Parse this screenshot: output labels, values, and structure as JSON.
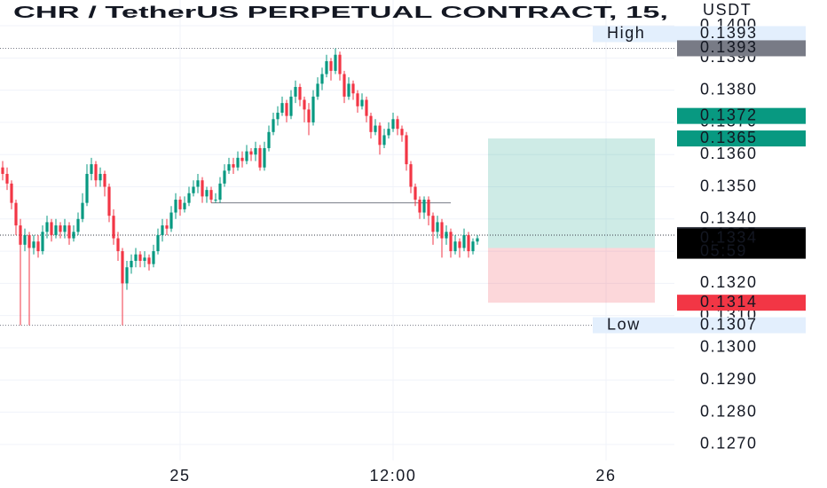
{
  "chart_data": {
    "type": "candlestick",
    "title": "CHR / TetherUS PERPETUAL CONTRACT, 15,",
    "currency": "USDT",
    "open": [
      0.1356,
      0.1354,
      0.1351,
      0.1345,
      0.1338,
      0.1332,
      0.1335,
      0.1331,
      0.1333,
      0.133,
      0.1336,
      0.1339,
      0.1335,
      0.1338,
      0.1336,
      0.1338,
      0.1334,
      0.1336,
      0.134,
      0.1345,
      0.1354,
      0.1357,
      0.1352,
      0.1354,
      0.135,
      0.1341,
      0.1334,
      0.133,
      0.132,
      0.1325,
      0.1327,
      0.1329,
      0.1327,
      0.1328,
      0.1326,
      0.133,
      0.1335,
      0.1338,
      0.1337,
      0.1342,
      0.1346,
      0.1343,
      0.1345,
      0.1348,
      0.135,
      0.1352,
      0.1347,
      0.1349,
      0.1346,
      0.1346,
      0.1351,
      0.1355,
      0.1357,
      0.1356,
      0.1359,
      0.1358,
      0.1361,
      0.136,
      0.1362,
      0.1356,
      0.1362,
      0.1367,
      0.1371,
      0.1373,
      0.1376,
      0.1372,
      0.1378,
      0.1381,
      0.1377,
      0.1374,
      0.137,
      0.1378,
      0.1382,
      0.1385,
      0.1389,
      0.1386,
      0.1391,
      0.1385,
      0.1378,
      0.1382,
      0.1379,
      0.1375,
      0.1377,
      0.1372,
      0.1367,
      0.1369,
      0.1363,
      0.1366,
      0.1368,
      0.1371,
      0.1368,
      0.1366,
      0.1357,
      0.135,
      0.1346,
      0.1342,
      0.1346,
      0.1341,
      0.1336,
      0.1339,
      0.1334,
      0.1336,
      0.133,
      0.1333,
      0.1331,
      0.1335,
      0.133,
      0.1333
    ],
    "high": [
      0.1358,
      0.1356,
      0.1352,
      0.1346,
      0.134,
      0.1337,
      0.1336,
      0.1335,
      0.1335,
      0.1338,
      0.1341,
      0.134,
      0.134,
      0.1339,
      0.134,
      0.1339,
      0.1338,
      0.1342,
      0.1348,
      0.1357,
      0.1359,
      0.1358,
      0.1356,
      0.1355,
      0.1351,
      0.1343,
      0.1336,
      0.1331,
      0.1327,
      0.1329,
      0.1331,
      0.133,
      0.133,
      0.1329,
      0.1332,
      0.1337,
      0.134,
      0.134,
      0.1344,
      0.1348,
      0.1347,
      0.1347,
      0.135,
      0.1352,
      0.1354,
      0.1353,
      0.135,
      0.135,
      0.1348,
      0.1353,
      0.1357,
      0.1359,
      0.1359,
      0.1361,
      0.1361,
      0.1363,
      0.1362,
      0.1364,
      0.1363,
      0.1364,
      0.1369,
      0.1373,
      0.1375,
      0.1378,
      0.1377,
      0.138,
      0.1383,
      0.1382,
      0.1378,
      0.1376,
      0.138,
      0.1384,
      0.1387,
      0.1391,
      0.139,
      0.1393,
      0.1392,
      0.1386,
      0.1384,
      0.1383,
      0.138,
      0.1379,
      0.1378,
      0.1373,
      0.1371,
      0.137,
      0.1368,
      0.137,
      0.1373,
      0.1372,
      0.1369,
      0.1367,
      0.1358,
      0.1351,
      0.1347,
      0.1347,
      0.1347,
      0.1342,
      0.1341,
      0.134,
      0.1338,
      0.1337,
      0.1335,
      0.1334,
      0.1337,
      0.1336,
      0.1334,
      0.1335
    ],
    "low": [
      0.1352,
      0.1349,
      0.1343,
      0.1335,
      0.1307,
      0.133,
      0.1307,
      0.1329,
      0.1328,
      0.1329,
      0.1334,
      0.1333,
      0.1334,
      0.1334,
      0.1334,
      0.1332,
      0.1333,
      0.1335,
      0.1339,
      0.1344,
      0.1352,
      0.135,
      0.135,
      0.1347,
      0.1339,
      0.1332,
      0.1327,
      0.1307,
      0.1318,
      0.1323,
      0.1325,
      0.1325,
      0.1325,
      0.1324,
      0.1325,
      0.1329,
      0.1333,
      0.1335,
      0.1336,
      0.134,
      0.1341,
      0.1342,
      0.1344,
      0.1347,
      0.1348,
      0.1345,
      0.1345,
      0.1345,
      0.1345,
      0.1345,
      0.135,
      0.1354,
      0.1354,
      0.1355,
      0.1356,
      0.1357,
      0.1358,
      0.1358,
      0.1355,
      0.1355,
      0.1361,
      0.1366,
      0.1369,
      0.1372,
      0.137,
      0.1371,
      0.1376,
      0.1375,
      0.137,
      0.1366,
      0.1369,
      0.1377,
      0.138,
      0.1384,
      0.1383,
      0.1385,
      0.1383,
      0.1376,
      0.1377,
      0.1377,
      0.1373,
      0.1374,
      0.137,
      0.1365,
      0.1366,
      0.136,
      0.1362,
      0.1365,
      0.1367,
      0.1366,
      0.1364,
      0.1355,
      0.1348,
      0.1344,
      0.134,
      0.134,
      0.1338,
      0.1332,
      0.1334,
      0.1328,
      0.1332,
      0.1328,
      0.1329,
      0.1328,
      0.133,
      0.1328,
      0.1329,
      0.1332
    ],
    "close": [
      0.1354,
      0.1351,
      0.1345,
      0.1338,
      0.1332,
      0.1335,
      0.1331,
      0.1333,
      0.133,
      0.1336,
      0.1339,
      0.1335,
      0.1338,
      0.1336,
      0.1338,
      0.1334,
      0.1336,
      0.134,
      0.1345,
      0.1354,
      0.1357,
      0.1352,
      0.1354,
      0.135,
      0.1341,
      0.1334,
      0.133,
      0.132,
      0.1325,
      0.1327,
      0.1329,
      0.1327,
      0.1328,
      0.1326,
      0.133,
      0.1335,
      0.1338,
      0.1337,
      0.1342,
      0.1346,
      0.1343,
      0.1345,
      0.1348,
      0.135,
      0.1352,
      0.1347,
      0.1349,
      0.1346,
      0.1346,
      0.1351,
      0.1355,
      0.1357,
      0.1356,
      0.1359,
      0.1358,
      0.1361,
      0.136,
      0.1362,
      0.1356,
      0.1362,
      0.1367,
      0.1371,
      0.1373,
      0.1376,
      0.1372,
      0.1378,
      0.1381,
      0.1377,
      0.1374,
      0.137,
      0.1378,
      0.1382,
      0.1385,
      0.1389,
      0.1386,
      0.1391,
      0.1385,
      0.1378,
      0.1382,
      0.1379,
      0.1375,
      0.1377,
      0.1372,
      0.1367,
      0.1369,
      0.1363,
      0.1366,
      0.1368,
      0.1371,
      0.1368,
      0.1366,
      0.1357,
      0.135,
      0.1346,
      0.1342,
      0.1346,
      0.1341,
      0.1336,
      0.1339,
      0.1334,
      0.1336,
      0.133,
      0.1333,
      0.1331,
      0.1335,
      0.133,
      0.1333,
      0.1334
    ],
    "up_color": "#089981",
    "down_color": "#f23645",
    "xlim": [
      -0.6,
      151.4
    ],
    "xticks": [
      {
        "value": 40,
        "label": "25"
      },
      {
        "value": 88,
        "label": "12:00"
      },
      {
        "value": 136,
        "label": "26"
      }
    ],
    "ylim": [
      0.1265,
      0.1408
    ],
    "yticks": [
      {
        "value": 0.14,
        "label": "0.1400"
      },
      {
        "value": 0.139,
        "label": "0.1390"
      },
      {
        "value": 0.138,
        "label": "0.1380"
      },
      {
        "value": 0.137,
        "label": "0.1370"
      },
      {
        "value": 0.136,
        "label": "0.1360"
      },
      {
        "value": 0.135,
        "label": "0.1350"
      },
      {
        "value": 0.134,
        "label": "0.1340"
      },
      {
        "value": 0.133,
        "label": "0.1330"
      },
      {
        "value": 0.132,
        "label": "0.1320"
      },
      {
        "value": 0.131,
        "label": "0.1310"
      },
      {
        "value": 0.13,
        "label": "0.1300"
      },
      {
        "value": 0.129,
        "label": "0.1290"
      },
      {
        "value": 0.128,
        "label": "0.1280"
      },
      {
        "value": 0.127,
        "label": "0.1270"
      }
    ],
    "grid": true,
    "trend_line": 0.1345,
    "position": {
      "target": 0.1365,
      "entry": 0.1331,
      "stop": 0.1314
    },
    "extremes": [
      {
        "label": "High",
        "value": 0.1393
      },
      {
        "label": "Low",
        "value": 0.1307
      }
    ],
    "price_labels": [
      {
        "value": 0.1393,
        "color": "#787b86"
      },
      {
        "value": 0.1372,
        "color": "#089981"
      },
      {
        "value": 0.1365,
        "color": "#089981"
      },
      {
        "value": 0.1335,
        "color": "#363a45",
        "dotted": true
      },
      {
        "value": 0.1331,
        "color": "#787b86"
      },
      {
        "value": 0.1314,
        "color": "#f23645"
      },
      {
        "value": 0.1334,
        "color": "#000000",
        "countdown": "05:59"
      }
    ]
  }
}
